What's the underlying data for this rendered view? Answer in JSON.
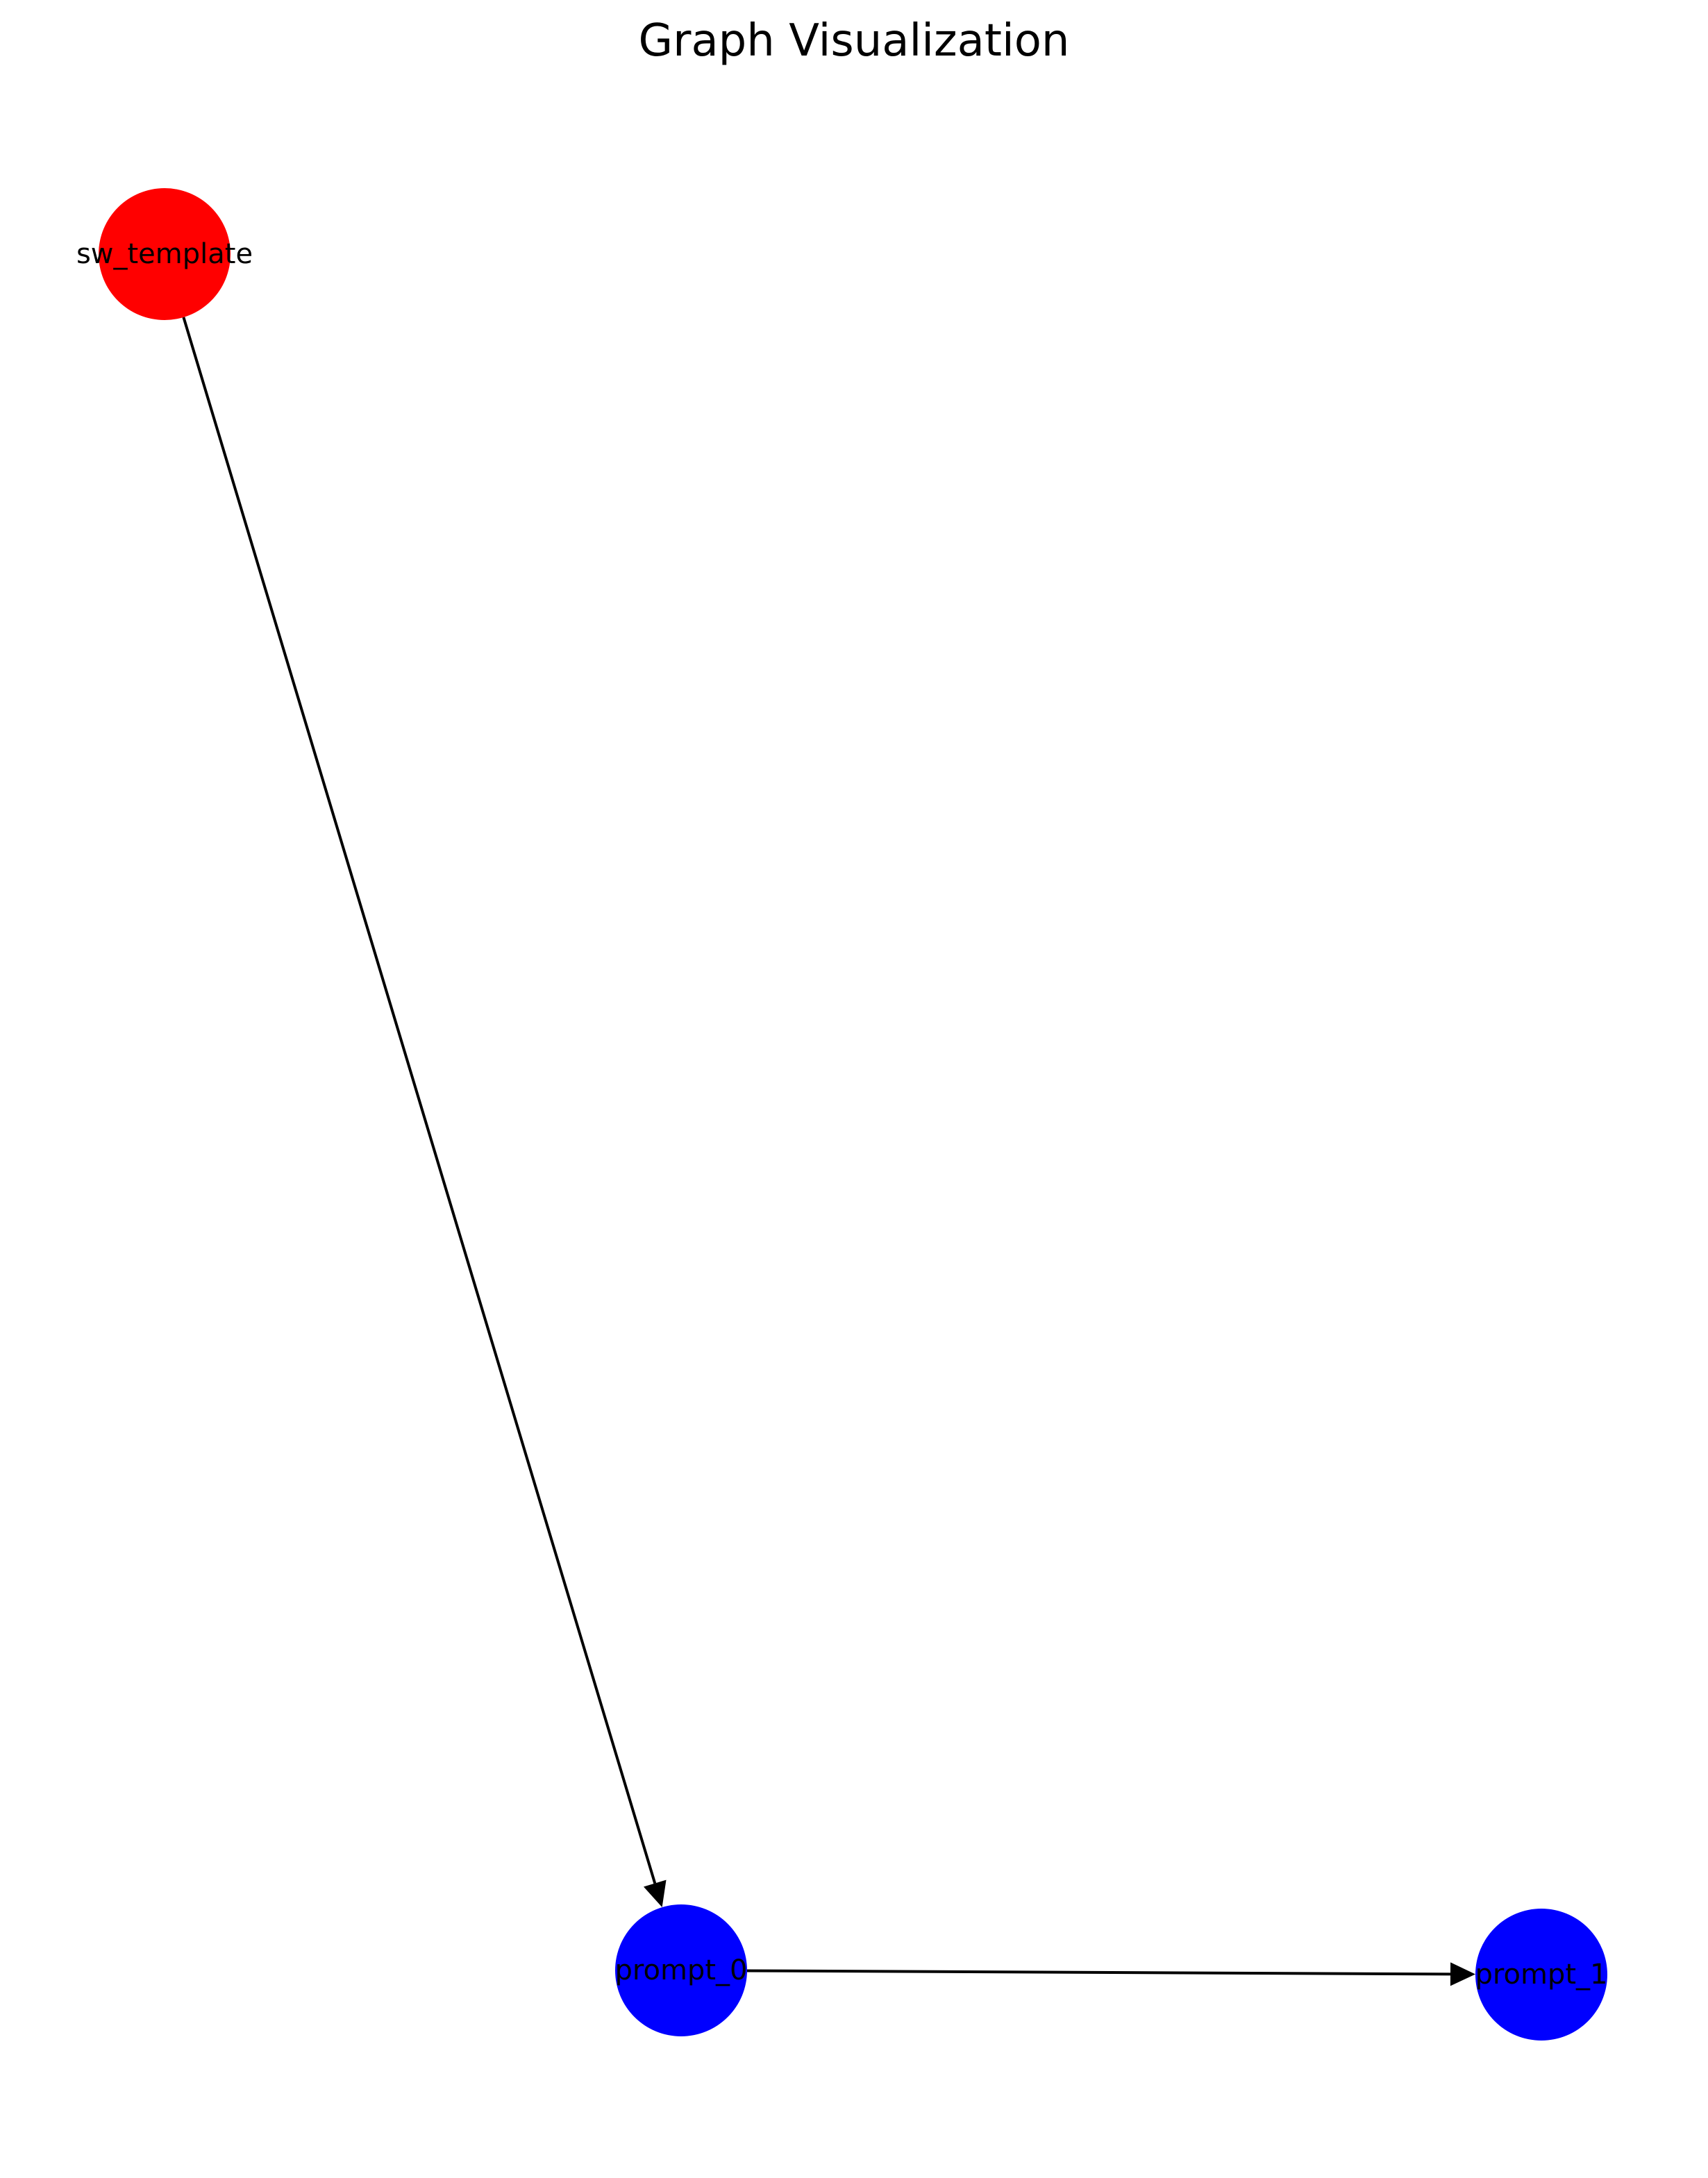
{
  "title": "Graph Visualization",
  "nodes": [
    {
      "id": "sw_template",
      "label": "sw_template",
      "color": "#ff0000"
    },
    {
      "id": "prompt_0",
      "label": "prompt_0",
      "color": "#0000ff"
    },
    {
      "id": "prompt_1",
      "label": "prompt_1",
      "color": "#0000ff"
    }
  ],
  "edges": [
    {
      "source": "sw_template",
      "target": "prompt_0"
    },
    {
      "source": "prompt_0",
      "target": "prompt_1"
    }
  ]
}
